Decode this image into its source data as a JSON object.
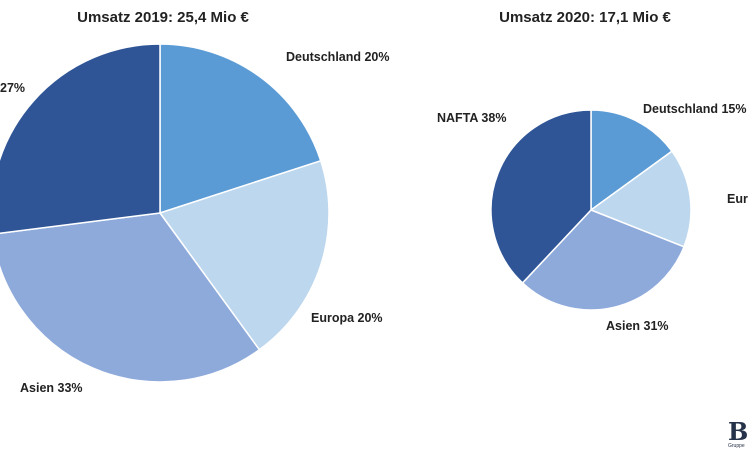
{
  "chart_data": [
    {
      "type": "pie",
      "title": "Umsatz 2019: 25,4 Mio €",
      "slices": [
        {
          "name": "Deutschland",
          "value": 20,
          "label": "Deutschland 20%",
          "color": "#5b9bd5"
        },
        {
          "name": "Europa",
          "value": 20,
          "label": "Europa 20%",
          "color": "#bdd7ee"
        },
        {
          "name": "Asien",
          "value": 33,
          "label": "Asien 33%",
          "color": "#8eaadb"
        },
        {
          "name": "NAFTA",
          "value": 27,
          "label": "27%",
          "color": "#2f5597"
        }
      ],
      "start_angle": "12 o'clock",
      "direction": "clockwise"
    },
    {
      "type": "pie",
      "title": "Umsatz 2020: 17,1 Mio €",
      "slices": [
        {
          "name": "Deutschland",
          "value": 15,
          "label": "Deutschland 15%",
          "color": "#5b9bd5"
        },
        {
          "name": "Europa",
          "value": 16,
          "label": "Eur",
          "color": "#bdd7ee"
        },
        {
          "name": "Asien",
          "value": 31,
          "label": "Asien 31%",
          "color": "#8eaadb"
        },
        {
          "name": "NAFTA",
          "value": 38,
          "label": "NAFTA 38%",
          "color": "#2f5597"
        }
      ],
      "start_angle": "12 o'clock",
      "direction": "clockwise"
    }
  ],
  "logo": {
    "letter": "B",
    "subtext": "Gruppe"
  }
}
